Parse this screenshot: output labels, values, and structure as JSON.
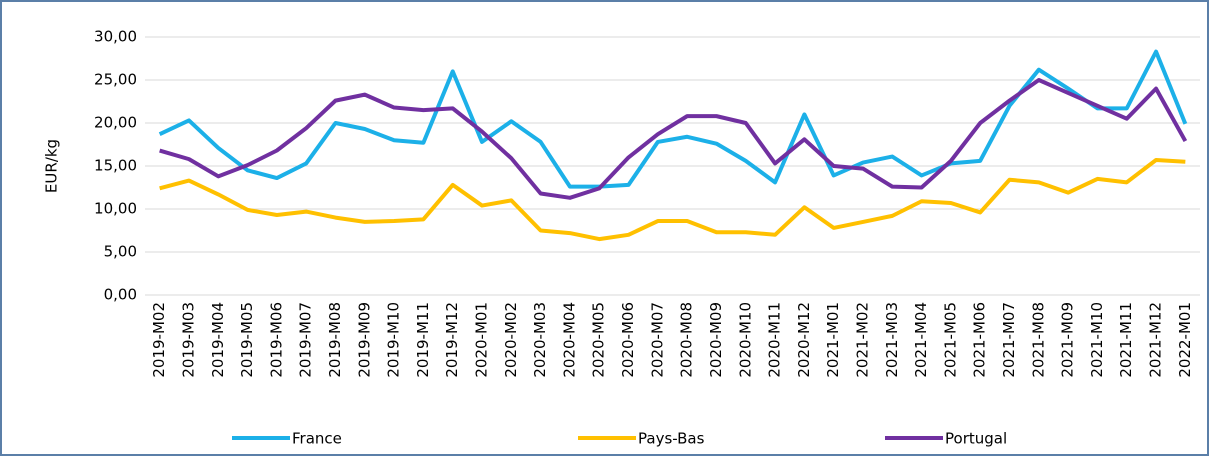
{
  "chart_data": {
    "type": "line",
    "y_label": "EUR/kg",
    "categories": [
      "2019-M02",
      "2019-M03",
      "2019-M04",
      "2019-M05",
      "2019-M06",
      "2019-M07",
      "2019-M08",
      "2019-M09",
      "2019-M10",
      "2019-M11",
      "2019-M12",
      "2020-M01",
      "2020-M02",
      "2020-M03",
      "2020-M04",
      "2020-M05",
      "2020-M06",
      "2020-M07",
      "2020-M08",
      "2020-M09",
      "2020-M10",
      "2020-M11",
      "2020-M12",
      "2021-M01",
      "2021-M02",
      "2021-M03",
      "2021-M04",
      "2021-M05",
      "2021-M06",
      "2021-M07",
      "2021-M08",
      "2021-M09",
      "2021-M10",
      "2021-M11",
      "2021-M12",
      "2022-M01"
    ],
    "series": [
      {
        "name": "France",
        "color": "#1cb0e8",
        "values": [
          18.7,
          20.3,
          17.1,
          14.5,
          13.6,
          15.3,
          20.0,
          19.3,
          18.0,
          17.7,
          26.0,
          17.8,
          20.2,
          17.8,
          12.6,
          12.6,
          12.8,
          17.8,
          18.4,
          17.6,
          15.6,
          13.1,
          21.0,
          13.9,
          15.4,
          16.1,
          13.9,
          15.3,
          15.6,
          22.0,
          26.2,
          24.0,
          21.7,
          21.7,
          28.3,
          19.9
        ]
      },
      {
        "name": "Pays-Bas",
        "color": "#ffc000",
        "values": [
          12.4,
          13.3,
          11.7,
          9.9,
          9.3,
          9.7,
          9.0,
          8.5,
          8.6,
          8.8,
          12.8,
          10.4,
          11.0,
          7.5,
          7.2,
          6.5,
          7.0,
          8.6,
          8.6,
          7.3,
          7.3,
          7.0,
          10.2,
          7.8,
          8.5,
          9.2,
          10.9,
          10.7,
          9.6,
          13.4,
          13.1,
          11.9,
          13.5,
          13.1,
          15.7,
          15.5
        ]
      },
      {
        "name": "Portugal",
        "color": "#7030a0",
        "values": [
          16.8,
          15.8,
          13.8,
          15.1,
          16.8,
          19.4,
          22.6,
          23.3,
          21.8,
          21.5,
          21.7,
          19.0,
          15.9,
          11.8,
          11.3,
          12.4,
          16.0,
          18.7,
          20.8,
          20.8,
          20.0,
          15.3,
          18.1,
          15.0,
          14.7,
          12.6,
          12.5,
          15.6,
          20.0,
          22.6,
          25.0,
          23.5,
          22.0,
          20.5,
          24.0,
          17.9
        ]
      }
    ],
    "ylim": [
      0,
      30
    ],
    "yticks": [
      {
        "value": 0,
        "label": "0,00"
      },
      {
        "value": 5,
        "label": "5,00"
      },
      {
        "value": 10,
        "label": "10,00"
      },
      {
        "value": 15,
        "label": "15,00"
      },
      {
        "value": 20,
        "label": "20,00"
      },
      {
        "value": 25,
        "label": "25,00"
      },
      {
        "value": 30,
        "label": "30,00"
      }
    ],
    "grid": true,
    "legend": "bottom"
  }
}
